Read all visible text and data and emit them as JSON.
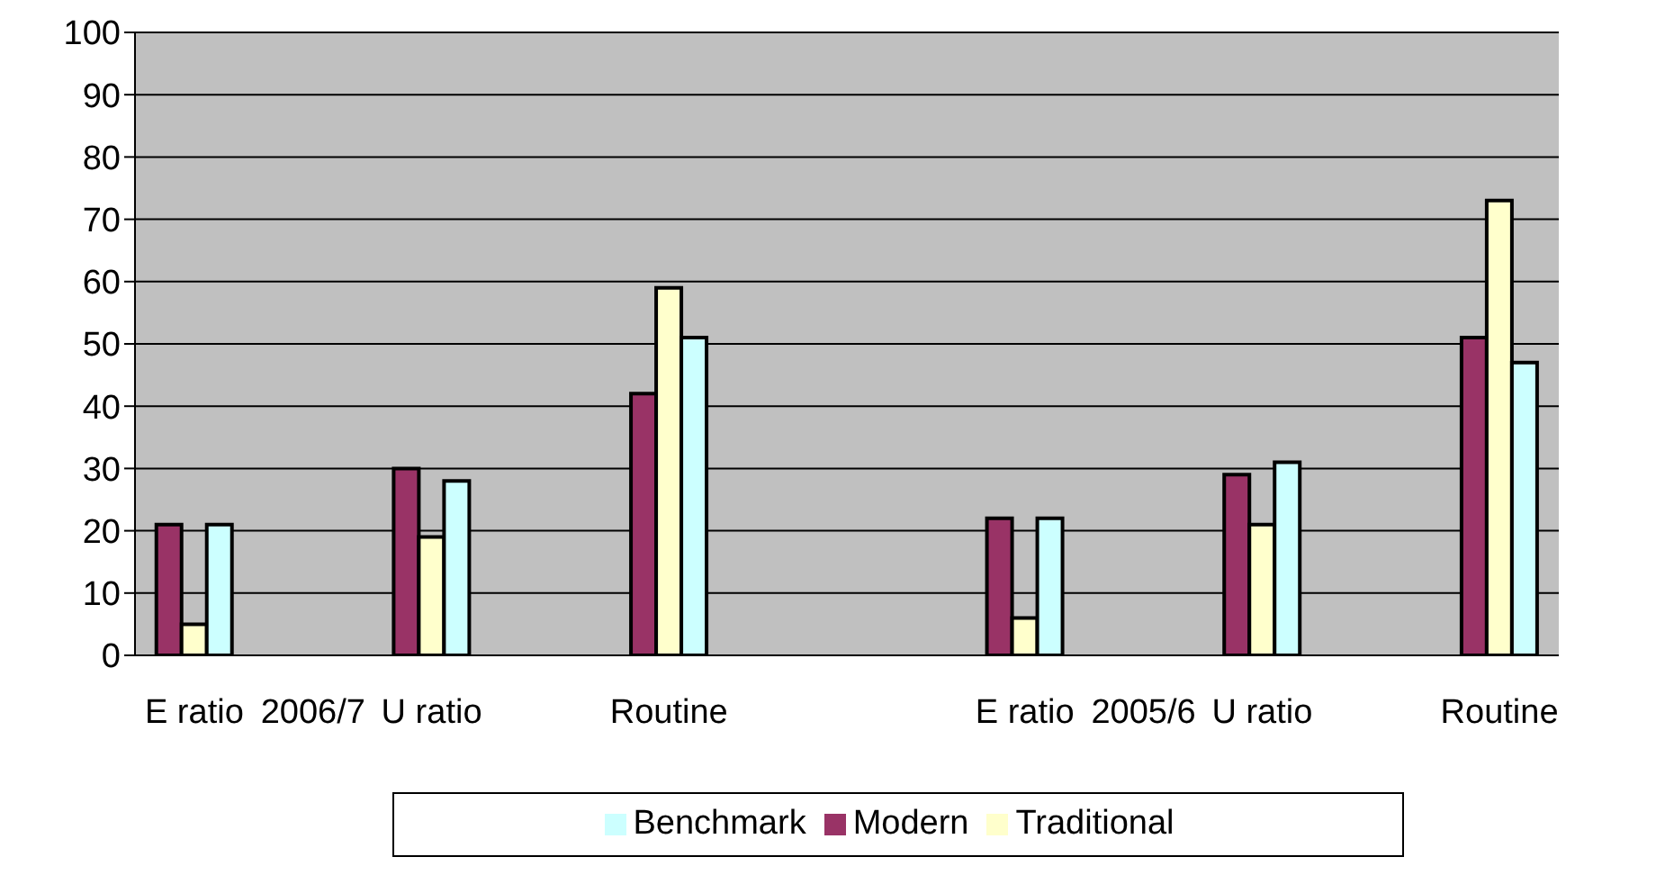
{
  "chart_data": {
    "type": "bar",
    "categories": [
      "E ratio",
      "2006/7",
      "U ratio",
      null,
      "Routine",
      null,
      null,
      "E ratio",
      "2005/6",
      "U ratio",
      null,
      "Routine"
    ],
    "series": [
      {
        "name": "Modern",
        "color": "#993366",
        "values": [
          21,
          null,
          30,
          null,
          42,
          null,
          null,
          22,
          null,
          29,
          null,
          51
        ]
      },
      {
        "name": "Traditional",
        "color": "#ffffcc",
        "values": [
          5,
          null,
          19,
          null,
          59,
          null,
          null,
          6,
          null,
          21,
          null,
          73
        ]
      },
      {
        "name": "Benchmark",
        "color": "#ccffff",
        "values": [
          21,
          null,
          28,
          null,
          51,
          null,
          null,
          22,
          null,
          31,
          null,
          47
        ]
      }
    ],
    "ylim": [
      0,
      100
    ],
    "yticks": [
      0,
      10,
      20,
      30,
      40,
      50,
      60,
      70,
      80,
      90,
      100
    ],
    "grid": "y",
    "legend": "bottom"
  }
}
